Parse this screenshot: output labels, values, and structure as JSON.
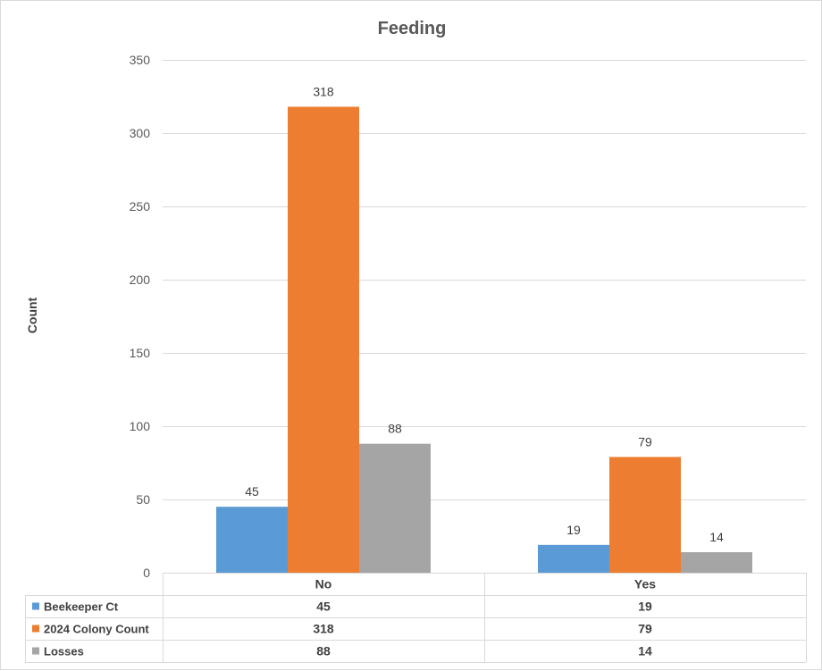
{
  "chart_data": {
    "type": "bar",
    "title": "Feeding",
    "xlabel": "",
    "ylabel": "Count",
    "categories": [
      "No",
      "Yes"
    ],
    "ylim": [
      0,
      350
    ],
    "yticks": [
      0,
      50,
      100,
      150,
      200,
      250,
      300,
      350
    ],
    "grid": true,
    "legend": "data-table-below",
    "series": [
      {
        "name": "Beekeeper Ct",
        "values": [
          45,
          19
        ],
        "color": "#5b9bd5"
      },
      {
        "name": "2024 Colony Count",
        "values": [
          318,
          79
        ],
        "color": "#ed7d31"
      },
      {
        "name": "Losses",
        "values": [
          88,
          14
        ],
        "color": "#a5a5a5"
      }
    ]
  }
}
